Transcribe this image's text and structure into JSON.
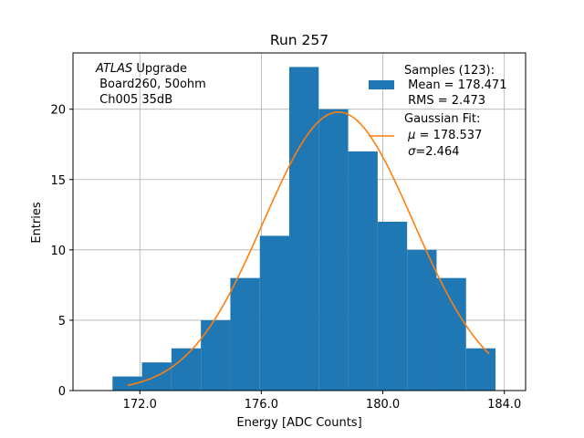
{
  "chart_data": {
    "type": "bar",
    "title": "Run 257",
    "xlabel": "Energy [ADC Counts]",
    "ylabel": "Entries",
    "xlim": [
      169.8,
      184.7
    ],
    "ylim": [
      0,
      24
    ],
    "grid": true,
    "bin_width": 0.97,
    "bin_edges": [
      171.1,
      172.07,
      173.04,
      174.01,
      174.98,
      175.95,
      176.92,
      177.89,
      178.86,
      179.83,
      180.8,
      181.77,
      182.74,
      183.71
    ],
    "values": [
      1,
      2,
      3,
      5,
      8,
      11,
      23,
      20,
      17,
      12,
      10,
      8,
      3
    ],
    "xticks": [
      172.0,
      176.0,
      180.0,
      184.0
    ],
    "xtick_labels": [
      "172.0",
      "176.0",
      "180.0",
      "184.0"
    ],
    "yticks": [
      0,
      5,
      10,
      15,
      20
    ],
    "ytick_labels": [
      "0",
      "5",
      "10",
      "15",
      "20"
    ],
    "fit": {
      "type": "gaussian",
      "mu": 178.537,
      "sigma": 2.464,
      "amplitude": 19.8,
      "x_range": [
        171.6,
        183.5
      ],
      "color": "#ff7f0e"
    },
    "bar_color": "#1f77b4",
    "annotation": {
      "italic": "ATLAS",
      "line1_rest": " Upgrade",
      "line2": " Board260, 50ohm",
      "line3": " Ch005 35dB"
    },
    "legend": {
      "position": "top-right",
      "samples": {
        "line1": "Samples (123):",
        "line2": " Mean = 178.471",
        "line3": " RMS = 2.473"
      },
      "fit": {
        "line1": "Gaussian Fit:",
        "line2_sym": "μ",
        "line2_rest": " = 178.537",
        "line3_sym": "σ",
        "line3_rest": "=2.464"
      }
    }
  }
}
